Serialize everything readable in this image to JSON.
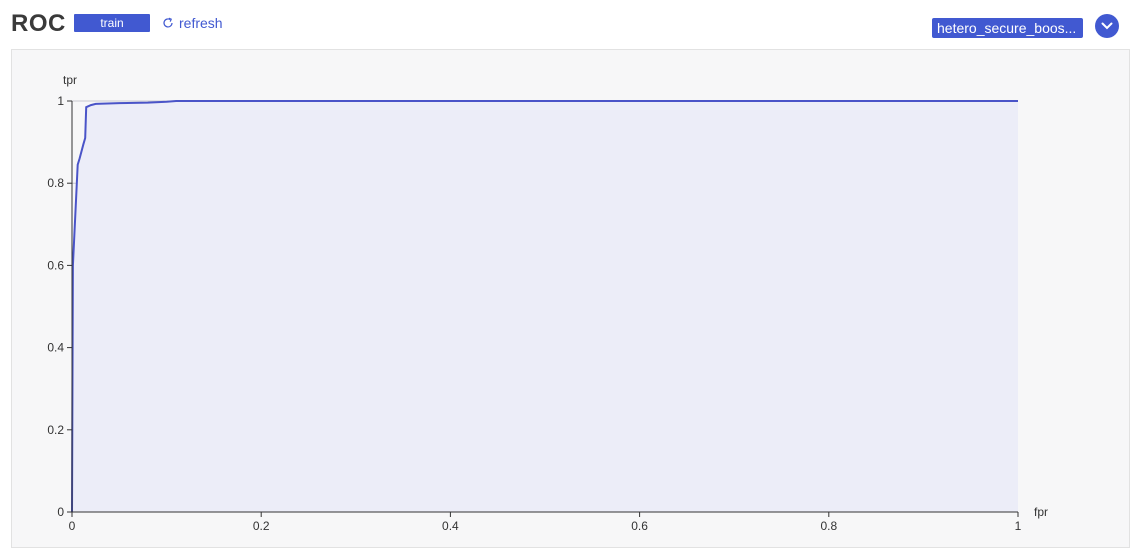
{
  "header": {
    "title": "ROC",
    "train_label": "train",
    "refresh_label": "refresh",
    "model_label": "hetero_secure_boos...",
    "icons": {
      "refresh": "refresh-icon",
      "dropdown": "chevron-down-icon"
    }
  },
  "colors": {
    "accent": "#4159d1",
    "line": "#4a54c8",
    "area": "#ecedf8",
    "grid": "#c8c8d0"
  },
  "chart_data": {
    "type": "area",
    "title": "ROC",
    "xlabel": "fpr",
    "ylabel": "tpr",
    "xlim": [
      0,
      1
    ],
    "ylim": [
      0,
      1
    ],
    "x_ticks": [
      "0",
      "0.2",
      "0.4",
      "0.6",
      "0.8",
      "1"
    ],
    "y_ticks": [
      "0",
      "0.2",
      "0.4",
      "0.6",
      "0.8",
      "1"
    ],
    "grid": true,
    "series": [
      {
        "x": [
          0,
          0.001,
          0.006,
          0.008,
          0.012,
          0.014,
          0.015,
          0.02,
          0.025,
          0.05,
          0.08,
          0.1,
          0.11,
          0.3,
          1
        ],
        "y": [
          0,
          0.6,
          0.845,
          0.86,
          0.895,
          0.91,
          0.985,
          0.99,
          0.993,
          0.995,
          0.996,
          0.998,
          1,
          1,
          1
        ]
      }
    ]
  }
}
